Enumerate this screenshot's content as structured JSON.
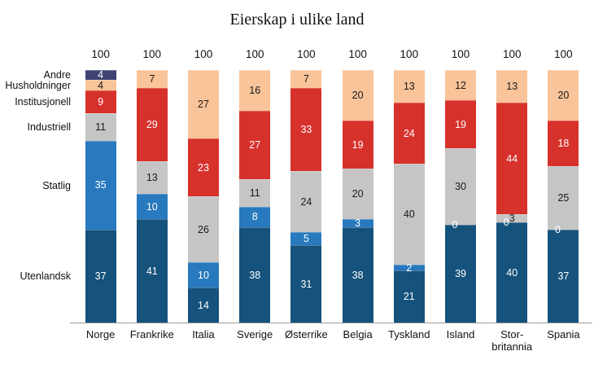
{
  "chart_data": {
    "type": "bar",
    "stacked": true,
    "title": "Eierskap i ulike land",
    "grid": false,
    "legend_position": "left-axis",
    "ylim": [
      0,
      100
    ],
    "categories": [
      "Norge",
      "Frankrike",
      "Italia",
      "Sverige",
      "Østerrike",
      "Belgia",
      "Tyskland",
      "Island",
      "Stor-\nbritannia",
      "Spania"
    ],
    "totals": [
      100,
      100,
      100,
      100,
      100,
      100,
      100,
      100,
      100,
      100
    ],
    "series": [
      {
        "name": "Utenlandsk",
        "color": "#15527C",
        "text_color": "#ffffff",
        "label_zero": false,
        "values": [
          37,
          41,
          14,
          38,
          31,
          38,
          21,
          39,
          40,
          37
        ]
      },
      {
        "name": "Statlig",
        "color": "#2879BE",
        "text_color": "#ffffff",
        "label_zero": true,
        "values": [
          35,
          10,
          10,
          8,
          5,
          3,
          2,
          0,
          0,
          0
        ]
      },
      {
        "name": "Industriell",
        "color": "#C5C5C5",
        "text_color": "#1a1a1a",
        "label_zero": false,
        "values": [
          11,
          13,
          26,
          11,
          24,
          20,
          40,
          30,
          3,
          25
        ]
      },
      {
        "name": "Institusjonell",
        "color": "#D7312C",
        "text_color": "#ffffff",
        "label_zero": false,
        "values": [
          9,
          29,
          23,
          27,
          33,
          19,
          24,
          19,
          44,
          18
        ]
      },
      {
        "name": "Husholdninger",
        "color": "#F9C499",
        "text_color": "#1a1a1a",
        "label_zero": false,
        "values": [
          4,
          7,
          27,
          16,
          7,
          20,
          13,
          12,
          13,
          20
        ]
      },
      {
        "name": "Andre",
        "color": "#3E4374",
        "text_color": "#ffffff",
        "label_zero": false,
        "values": [
          4,
          0,
          0,
          0,
          0,
          0,
          0,
          0,
          0,
          0
        ]
      }
    ]
  }
}
